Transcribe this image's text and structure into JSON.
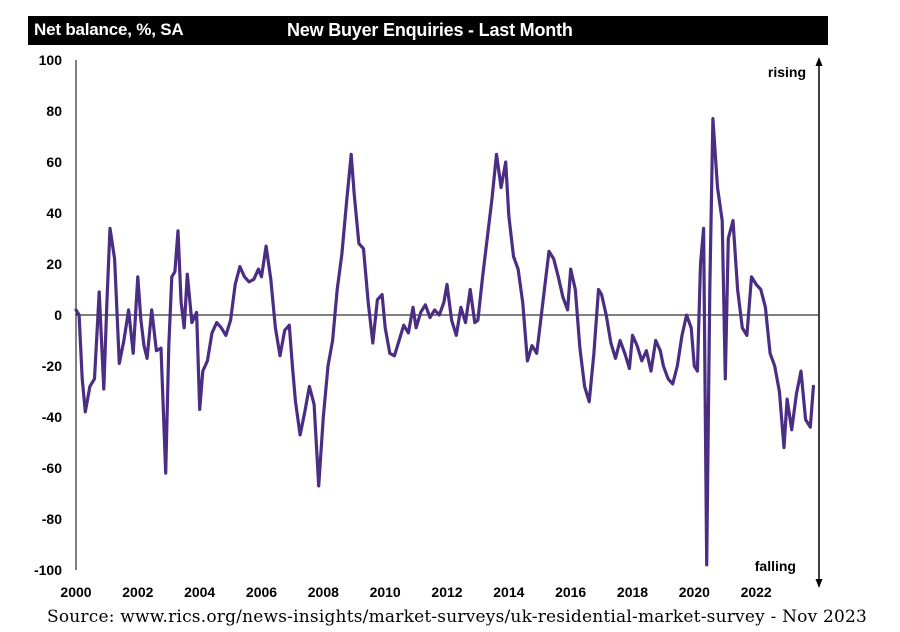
{
  "header": {
    "units": "Net balance, %, SA",
    "title": "New Buyer Enquiries - Last Month"
  },
  "source": "Source: www.rics.org/news-insights/market-surveys/uk-residential-market-survey - Nov 2023",
  "colors": {
    "line": "#4b2e83",
    "axis": "#000000",
    "header_bg": "#000000"
  },
  "chart_data": {
    "type": "line",
    "title": "New Buyer Enquiries - Last Month",
    "ylabel": "Net balance, %, SA",
    "xlim": [
      2000,
      2024
    ],
    "ylim": [
      -100,
      100
    ],
    "xticks": [
      2000,
      2002,
      2004,
      2006,
      2008,
      2010,
      2012,
      2014,
      2016,
      2018,
      2020,
      2022
    ],
    "yticks": [
      -100,
      -80,
      -60,
      -40,
      -20,
      0,
      20,
      40,
      60,
      80,
      100
    ],
    "annotations": {
      "top": "rising",
      "bottom": "falling"
    },
    "grid": false,
    "series": [
      {
        "x": [
          2000.0,
          2000.1,
          2000.2,
          2000.3,
          2000.45,
          2000.6,
          2000.75,
          2000.9,
          2001.0,
          2001.1,
          2001.25,
          2001.4,
          2001.55,
          2001.7,
          2001.85,
          2002.0,
          2002.1,
          2002.2,
          2002.3,
          2002.45,
          2002.6,
          2002.75,
          2002.9,
          2003.0,
          2003.1,
          2003.2,
          2003.3,
          2003.4,
          2003.5,
          2003.6,
          2003.75,
          2003.9,
          2004.0,
          2004.1,
          2004.25,
          2004.4,
          2004.55,
          2004.7,
          2004.85,
          2005.0,
          2005.15,
          2005.3,
          2005.45,
          2005.6,
          2005.75,
          2005.9,
          2006.0,
          2006.15,
          2006.3,
          2006.45,
          2006.6,
          2006.75,
          2006.9,
          2007.0,
          2007.1,
          2007.25,
          2007.4,
          2007.55,
          2007.7,
          2007.85,
          2008.0,
          2008.15,
          2008.3,
          2008.45,
          2008.6,
          2008.75,
          2008.9,
          2009.0,
          2009.15,
          2009.3,
          2009.45,
          2009.6,
          2009.75,
          2009.9,
          2010.0,
          2010.15,
          2010.3,
          2010.45,
          2010.6,
          2010.75,
          2010.9,
          2011.0,
          2011.15,
          2011.3,
          2011.45,
          2011.6,
          2011.75,
          2011.9,
          2012.0,
          2012.15,
          2012.3,
          2012.45,
          2012.6,
          2012.75,
          2012.9,
          2013.0,
          2013.15,
          2013.3,
          2013.45,
          2013.6,
          2013.75,
          2013.9,
          2014.0,
          2014.15,
          2014.3,
          2014.45,
          2014.6,
          2014.75,
          2014.9,
          2015.0,
          2015.15,
          2015.3,
          2015.45,
          2015.6,
          2015.75,
          2015.9,
          2016.0,
          2016.15,
          2016.3,
          2016.45,
          2016.6,
          2016.75,
          2016.9,
          2017.0,
          2017.15,
          2017.3,
          2017.45,
          2017.6,
          2017.75,
          2017.9,
          2018.0,
          2018.15,
          2018.3,
          2018.45,
          2018.6,
          2018.75,
          2018.9,
          2019.0,
          2019.15,
          2019.3,
          2019.45,
          2019.6,
          2019.75,
          2019.9,
          2020.0,
          2020.1,
          2020.2,
          2020.3,
          2020.4,
          2020.5,
          2020.6,
          2020.75,
          2020.9,
          2021.0,
          2021.1,
          2021.25,
          2021.4,
          2021.55,
          2021.7,
          2021.85,
          2022.0,
          2022.15,
          2022.3,
          2022.45,
          2022.6,
          2022.75,
          2022.9,
          2023.0,
          2023.15,
          2023.3,
          2023.45,
          2023.6,
          2023.75,
          2023.85
        ],
        "values": [
          2,
          0,
          -25,
          -38,
          -28,
          -25,
          9,
          -29,
          5,
          34,
          22,
          -19,
          -10,
          2,
          -15,
          15,
          -2,
          -12,
          -17,
          2,
          -14,
          -13,
          -62,
          -12,
          15,
          17,
          33,
          5,
          -5,
          16,
          -3,
          1,
          -37,
          -22,
          -18,
          -7,
          -3,
          -5,
          -8,
          -2,
          12,
          19,
          15,
          13,
          14,
          18,
          15,
          27,
          14,
          -5,
          -16,
          -6,
          -4,
          -20,
          -34,
          -47,
          -38,
          -28,
          -35,
          -67,
          -40,
          -20,
          -10,
          10,
          24,
          44,
          63,
          47,
          28,
          26,
          5,
          -11,
          6,
          8,
          -5,
          -15,
          -16,
          -10,
          -4,
          -7,
          3,
          -5,
          1,
          4,
          -1,
          2,
          0,
          5,
          12,
          -2,
          -8,
          3,
          -3,
          10,
          -3,
          -2,
          15,
          30,
          45,
          63,
          50,
          60,
          39,
          23,
          18,
          5,
          -18,
          -12,
          -15,
          -5,
          10,
          25,
          22,
          15,
          7,
          2,
          18,
          10,
          -13,
          -28,
          -34,
          -15,
          10,
          8,
          0,
          -11,
          -17,
          -10,
          -15,
          -21,
          -8,
          -12,
          -18,
          -14,
          -22,
          -10,
          -14,
          -20,
          -25,
          -27,
          -20,
          -8,
          0,
          -5,
          -20,
          -22,
          20,
          34,
          -98,
          10,
          77,
          50,
          37,
          -25,
          30,
          37,
          10,
          -5,
          -8,
          15,
          12,
          10,
          3,
          -15,
          -20,
          -30,
          -52,
          -33,
          -45,
          -31,
          -22,
          -41,
          -44,
          -28
        ]
      }
    ]
  }
}
